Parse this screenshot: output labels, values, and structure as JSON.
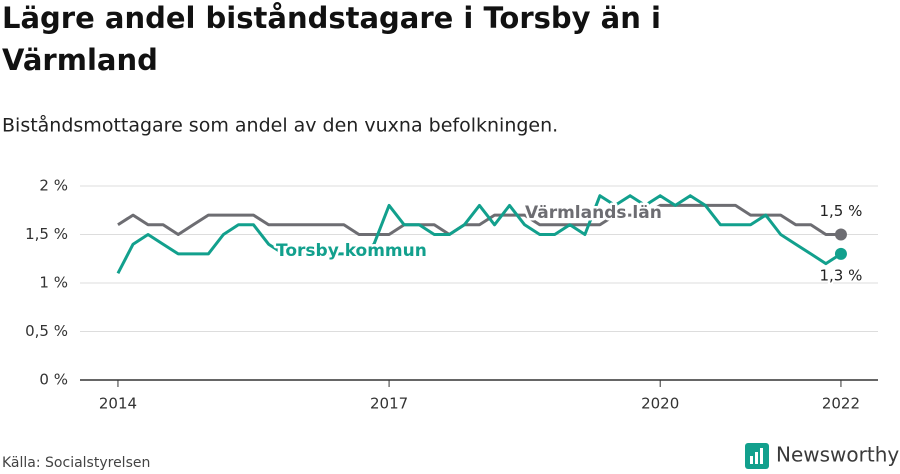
{
  "title": "Lägre andel biståndstagare i Torsby än i Värmland",
  "subtitle": "Biståndsmottagare som andel av den vuxna befolkningen.",
  "source": "Källa: Socialstyrelsen",
  "logo": "Newsworthy",
  "chart_data": {
    "type": "line",
    "x": [
      2014.0,
      2014.167,
      2014.333,
      2014.5,
      2014.667,
      2014.833,
      2015.0,
      2015.167,
      2015.333,
      2015.5,
      2015.667,
      2015.833,
      2016.0,
      2016.167,
      2016.333,
      2016.5,
      2016.667,
      2016.833,
      2017.0,
      2017.167,
      2017.333,
      2017.5,
      2017.667,
      2017.833,
      2018.0,
      2018.167,
      2018.333,
      2018.5,
      2018.667,
      2018.833,
      2019.0,
      2019.167,
      2019.333,
      2019.5,
      2019.667,
      2019.833,
      2020.0,
      2020.167,
      2020.333,
      2020.5,
      2020.667,
      2020.833,
      2021.0,
      2021.167,
      2021.333,
      2021.5,
      2021.667,
      2021.833,
      2022.0
    ],
    "series": [
      {
        "name": "Värmlands län",
        "color": "#6d6d72",
        "end_label": "1,5 %",
        "values": [
          1.6,
          1.7,
          1.6,
          1.6,
          1.5,
          1.6,
          1.7,
          1.7,
          1.7,
          1.7,
          1.6,
          1.6,
          1.6,
          1.6,
          1.6,
          1.6,
          1.5,
          1.5,
          1.5,
          1.6,
          1.6,
          1.6,
          1.5,
          1.6,
          1.6,
          1.7,
          1.7,
          1.7,
          1.6,
          1.6,
          1.6,
          1.6,
          1.6,
          1.7,
          1.7,
          1.7,
          1.8,
          1.8,
          1.8,
          1.8,
          1.8,
          1.8,
          1.7,
          1.7,
          1.7,
          1.6,
          1.6,
          1.5,
          1.5
        ]
      },
      {
        "name": "Torsby kommun",
        "color": "#12a08d",
        "end_label": "1,3 %",
        "values": [
          1.1,
          1.4,
          1.5,
          1.4,
          1.3,
          1.3,
          1.3,
          1.5,
          1.6,
          1.6,
          1.4,
          1.3,
          1.3,
          1.3,
          1.3,
          1.3,
          1.3,
          1.4,
          1.8,
          1.6,
          1.6,
          1.5,
          1.5,
          1.6,
          1.8,
          1.6,
          1.8,
          1.6,
          1.5,
          1.5,
          1.6,
          1.5,
          1.9,
          1.8,
          1.9,
          1.8,
          1.9,
          1.8,
          1.9,
          1.8,
          1.6,
          1.6,
          1.6,
          1.7,
          1.5,
          1.4,
          1.3,
          1.2,
          1.3
        ]
      }
    ],
    "xlim": [
      2013.58,
      2022.41
    ],
    "xticks": [
      2014,
      2017,
      2020,
      2022
    ],
    "ylim": [
      0,
      2
    ],
    "yticks": [
      {
        "value": 0,
        "label": "0 %"
      },
      {
        "value": 0.5,
        "label": "0,5 %"
      },
      {
        "value": 1,
        "label": "1 %"
      },
      {
        "value": 1.5,
        "label": "1,5 %"
      },
      {
        "value": 2,
        "label": "2 %"
      }
    ],
    "grid": true
  }
}
